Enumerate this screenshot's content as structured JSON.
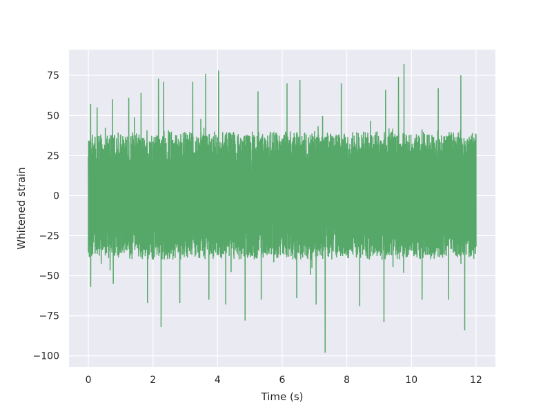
{
  "chart_data": {
    "type": "line",
    "title": "",
    "xlabel": "Time (s)",
    "ylabel": "Whitened strain",
    "xlim": [
      -0.6,
      12.6
    ],
    "ylim": [
      -107,
      91
    ],
    "x_ticks": [
      0,
      2,
      4,
      6,
      8,
      10,
      12
    ],
    "y_ticks": [
      -100,
      -75,
      -50,
      -25,
      0,
      25,
      50,
      75
    ],
    "x_tick_labels": [
      "0",
      "2",
      "4",
      "6",
      "8",
      "10",
      "12"
    ],
    "y_tick_labels": [
      "−100",
      "−75",
      "−50",
      "−25",
      "0",
      "25",
      "50",
      "75"
    ],
    "grid": true,
    "background": "#eaeaf2",
    "series": [
      {
        "color": "#55a868",
        "x_start": 0,
        "x_end": 12,
        "envelope": {
          "upper_typical": 38,
          "lower_typical": -40
        },
        "peaks": [
          {
            "x": 0.07,
            "y": 57
          },
          {
            "x": 0.27,
            "y": 55
          },
          {
            "x": 0.75,
            "y": 60
          },
          {
            "x": 1.25,
            "y": 61
          },
          {
            "x": 1.63,
            "y": 64
          },
          {
            "x": 2.17,
            "y": 73
          },
          {
            "x": 2.33,
            "y": 71
          },
          {
            "x": 3.23,
            "y": 71
          },
          {
            "x": 3.63,
            "y": 76
          },
          {
            "x": 4.03,
            "y": 78
          },
          {
            "x": 5.25,
            "y": 65
          },
          {
            "x": 6.15,
            "y": 70
          },
          {
            "x": 6.55,
            "y": 72
          },
          {
            "x": 7.83,
            "y": 70
          },
          {
            "x": 9.2,
            "y": 66
          },
          {
            "x": 9.6,
            "y": 74
          },
          {
            "x": 9.77,
            "y": 82
          },
          {
            "x": 10.83,
            "y": 67
          },
          {
            "x": 11.53,
            "y": 75
          },
          {
            "x": 0.07,
            "y": -57
          },
          {
            "x": 0.77,
            "y": -55
          },
          {
            "x": 1.83,
            "y": -67
          },
          {
            "x": 2.25,
            "y": -82
          },
          {
            "x": 2.83,
            "y": -67
          },
          {
            "x": 3.73,
            "y": -65
          },
          {
            "x": 4.25,
            "y": -68
          },
          {
            "x": 4.85,
            "y": -78
          },
          {
            "x": 5.35,
            "y": -65
          },
          {
            "x": 6.45,
            "y": -64
          },
          {
            "x": 7.05,
            "y": -68
          },
          {
            "x": 7.33,
            "y": -98
          },
          {
            "x": 8.4,
            "y": -69
          },
          {
            "x": 9.15,
            "y": -79
          },
          {
            "x": 10.33,
            "y": -65
          },
          {
            "x": 11.15,
            "y": -65
          },
          {
            "x": 11.65,
            "y": -84
          }
        ]
      }
    ]
  }
}
